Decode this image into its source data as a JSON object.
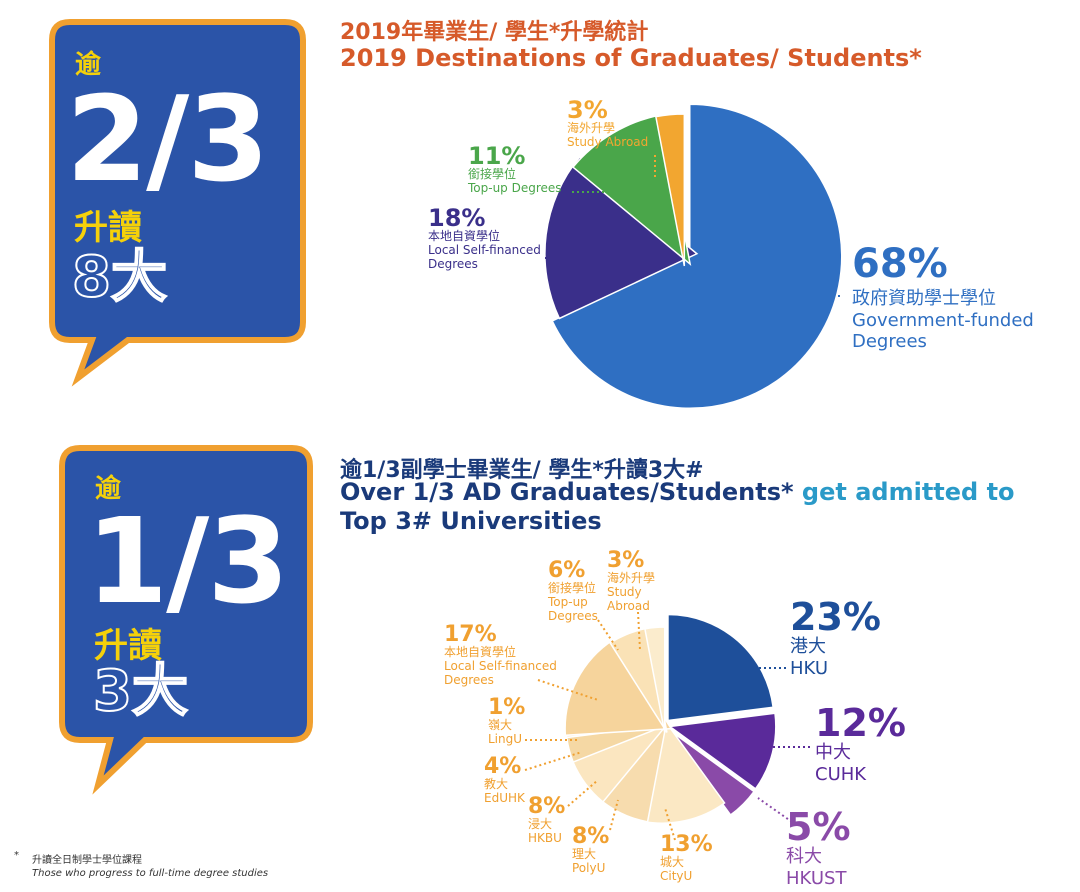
{
  "colors": {
    "bubble_fill": "#2b54a8",
    "bubble_border": "#f0a030",
    "title_orange": "#d65a2a",
    "navy": "#1a3a7a",
    "teal": "#2a9ac8",
    "gov_blue": "#2f6fc2",
    "self_purple": "#3a2f8a",
    "topup_green": "#4aa64a",
    "abroad_orange": "#f2a630",
    "hku_blue": "#1e4f9a",
    "cuhk_purple": "#5a2a9a",
    "hkust_violet": "#8a4aa8",
    "light_orange": "#f5d9a0",
    "label_orange": "#f0a030",
    "label_purple": "#5a3a9a"
  },
  "bubble1": {
    "over": "逾",
    "fraction": "2/3",
    "progress": "升讀",
    "target": "8大"
  },
  "bubble2": {
    "over": "逾",
    "fraction": "1/3",
    "progress": "升讀",
    "target": "3大"
  },
  "section1": {
    "title_cn": "2019年畢業生/ 學生*升學統計",
    "title_en": "2019 Destinations of Graduates/ Students*"
  },
  "section2": {
    "title_cn": "逾1/3副學士畢業生/ 學生*升讀3大#",
    "title_en_part1": "Over 1/3 AD Graduates/Students*",
    "title_en_part2": " get admitted to",
    "title_en_line2": "Top 3# Universities"
  },
  "chart_data": [
    {
      "type": "pie",
      "title": "2019 Destinations of Graduates/ Students*",
      "slices": [
        {
          "pct_label": "68%",
          "value": 68,
          "label_cn": "政府資助學士學位",
          "label_en": "Government-funded Degrees"
        },
        {
          "pct_label": "18%",
          "value": 18,
          "label_cn": "本地自資學位",
          "label_en": "Local Self-financed Degrees"
        },
        {
          "pct_label": "11%",
          "value": 11,
          "label_cn": "銜接學位",
          "label_en": "Top-up Degrees"
        },
        {
          "pct_label": "3%",
          "value": 3,
          "label_cn": "海外升學",
          "label_en": "Study Abroad"
        }
      ]
    },
    {
      "type": "pie",
      "title": "Over 1/3 AD Graduates/Students* get admitted to Top 3# Universities",
      "slices": [
        {
          "pct_label": "23%",
          "value": 23,
          "label_cn": "港大",
          "label_en": "HKU"
        },
        {
          "pct_label": "12%",
          "value": 12,
          "label_cn": "中大",
          "label_en": "CUHK"
        },
        {
          "pct_label": "5%",
          "value": 5,
          "label_cn": "科大",
          "label_en": "HKUST"
        },
        {
          "pct_label": "13%",
          "value": 13,
          "label_cn": "城大",
          "label_en": "CityU"
        },
        {
          "pct_label": "8%",
          "value": 8,
          "label_cn": "理大",
          "label_en": "PolyU"
        },
        {
          "pct_label": "8%",
          "value": 8,
          "label_cn": "浸大",
          "label_en": "HKBU"
        },
        {
          "pct_label": "4%",
          "value": 4,
          "label_cn": "教大",
          "label_en": "EdUHK"
        },
        {
          "pct_label": "1%",
          "value": 1,
          "label_cn": "嶺大",
          "label_en": "LingU"
        },
        {
          "pct_label": "17%",
          "value": 17,
          "label_cn": "本地自資學位",
          "label_en": "Local Self-financed Degrees"
        },
        {
          "pct_label": "6%",
          "value": 6,
          "label_cn": "銜接學位",
          "label_en": "Top-up Degrees"
        },
        {
          "pct_label": "3%",
          "value": 3,
          "label_cn": "海外升學",
          "label_en": "Study Abroad"
        }
      ]
    }
  ],
  "footnote": {
    "star": "*",
    "cn": "升讀全日制學士學位課程",
    "en": "Those who progress to full-time degree studies"
  }
}
